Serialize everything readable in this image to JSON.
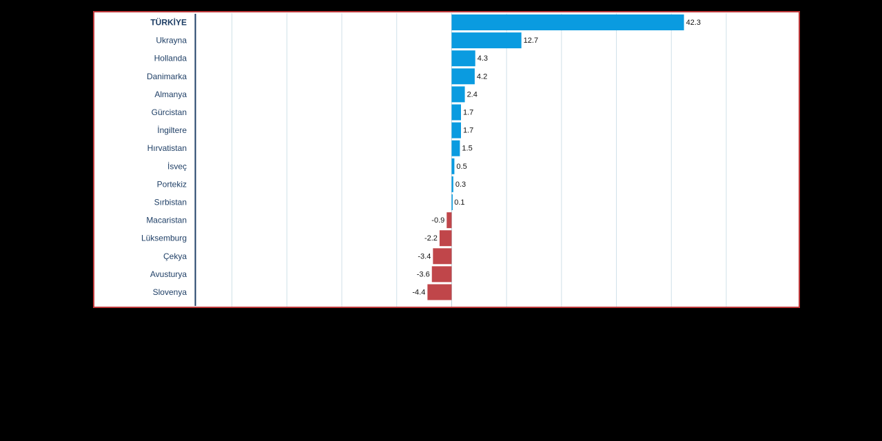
{
  "chart_data": {
    "type": "bar",
    "orientation": "horizontal",
    "categories": [
      "TÜRKİYE",
      "Ukrayna",
      "Hollanda",
      "Danimarka",
      "Almanya",
      "Gürcistan",
      "İngiltere",
      "Hırvatistan",
      "İsveç",
      "Portekiz",
      "Sırbistan",
      "Macaristan",
      "Lüksemburg",
      "Çekya",
      "Avusturya",
      "Slovenya"
    ],
    "values": [
      42.3,
      12.7,
      4.3,
      4.2,
      2.4,
      1.7,
      1.7,
      1.5,
      0.5,
      0.3,
      0.1,
      -0.9,
      -2.2,
      -3.4,
      -3.6,
      -4.4
    ],
    "value_labels": [
      "42.3",
      "12.7",
      "4.3",
      "4.2",
      "2.4",
      "1.7",
      "1.7",
      "1.5",
      "0.5",
      "0.3",
      "0.1",
      "-0.9",
      "-2.2",
      "-3.4",
      "-3.6",
      "-4.4"
    ],
    "highlight_category": "TÜRKİYE",
    "xlim": [
      -46.6,
      63.3
    ],
    "x_gridlines": [
      -40,
      -30,
      -20,
      -10,
      10,
      20,
      30,
      40,
      50
    ],
    "grid": true,
    "legend": "none",
    "title": "",
    "xlabel": "",
    "ylabel": "",
    "colors": {
      "positive": "#0a9be0",
      "negative": "#c0464a",
      "frame": "#c0393b",
      "axis": "#1f3f66",
      "gridline": "#cfe0e8",
      "zero_line": "#b9cfd8"
    }
  }
}
